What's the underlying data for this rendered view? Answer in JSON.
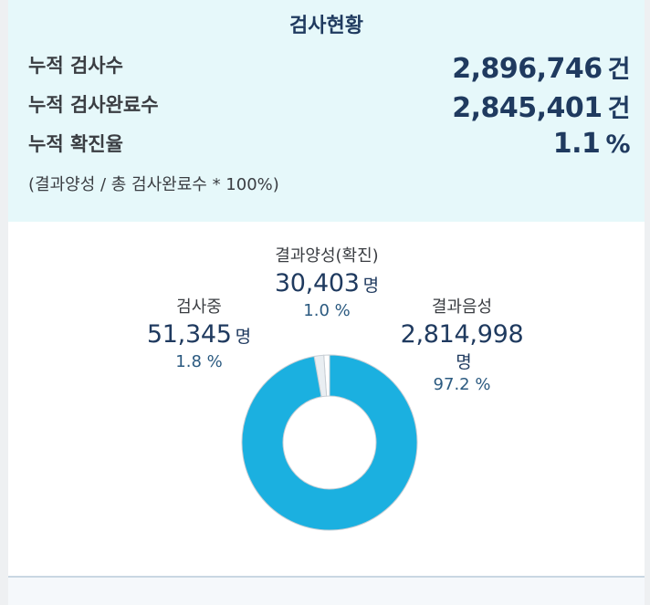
{
  "summary": {
    "title": "검사현황",
    "rows": [
      {
        "label": "누적 검사수",
        "value": "2,896,746",
        "unit": "건"
      },
      {
        "label": "누적 검사완료수",
        "value": "2,845,401",
        "unit": "건"
      },
      {
        "label": "누적 확진율",
        "value": "1.1",
        "unit": "%"
      }
    ],
    "note": "(결과양성 / 총 검사완료수 * 100%)"
  },
  "chart_data": {
    "type": "pie",
    "donut": true,
    "categories": [
      "결과양성(확진)",
      "검사중",
      "결과음성"
    ],
    "values": [
      30403,
      51345,
      2814998
    ],
    "value_labels": [
      "30,403",
      "51,345",
      "2,814,998"
    ],
    "unit": "명",
    "percent_labels": [
      "1.0 %",
      "1.8 %",
      "97.2 %"
    ],
    "percents": [
      1.0,
      1.8,
      97.2
    ],
    "colors": [
      "#ffffff",
      "#e9eef2",
      "#1bb0e0"
    ]
  }
}
